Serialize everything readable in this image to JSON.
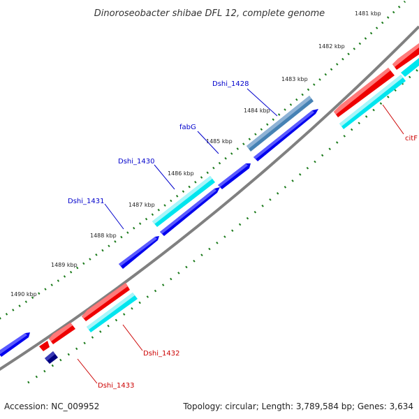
{
  "title": "Dinoroseobacter shibae DFL 12, complete genome",
  "footer": {
    "accession": "Accession: NC_009952",
    "summary": "Topology: circular; Length: 3,789,584 bp; Genes: 3,634"
  },
  "colors": {
    "backbone": "#808080",
    "forward_cds": "#0000ee",
    "reverse_cds": "#ee0000",
    "rna": "#00e5ee",
    "other_feature": "#4682b4",
    "navy_feature": "#000080",
    "tick": "#1a7a1a",
    "forward_label": "#0000cc",
    "reverse_label": "#cc0000"
  },
  "ticks": [
    "1481 kbp",
    "1482 kbp",
    "1483 kbp",
    "1484 kbp",
    "1485 kbp",
    "1486 kbp",
    "1487 kbp",
    "1488 kbp",
    "1489 kbp",
    "1490 kbp"
  ],
  "genes": [
    {
      "name": "Dshi_1428",
      "strand": "forward"
    },
    {
      "name": "fabG",
      "strand": "forward"
    },
    {
      "name": "Dshi_1430",
      "strand": "forward"
    },
    {
      "name": "Dshi_1431",
      "strand": "forward"
    },
    {
      "name": "citF",
      "strand": "reverse"
    },
    {
      "name": "Dshi_1432",
      "strand": "reverse"
    },
    {
      "name": "Dshi_1433",
      "strand": "reverse"
    }
  ]
}
